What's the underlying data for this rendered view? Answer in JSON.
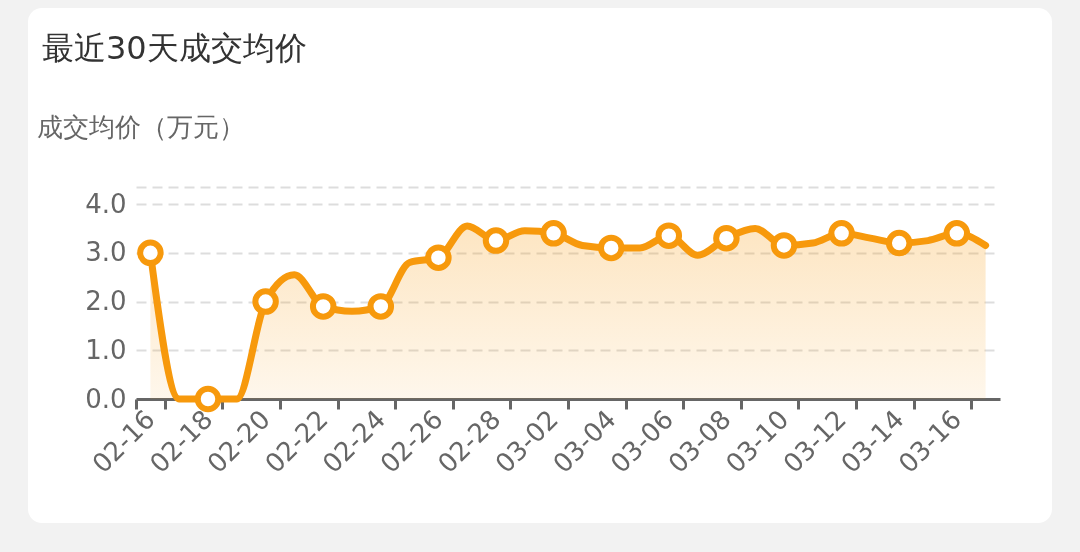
{
  "chart_data": {
    "type": "area",
    "title": "最近30天成交均价",
    "ylabel": "成交均价（万元）",
    "categories": [
      "02-16",
      null,
      "02-18",
      null,
      "02-20",
      null,
      "02-22",
      null,
      "02-24",
      null,
      "02-26",
      null,
      "02-28",
      null,
      "03-02",
      null,
      "03-04",
      null,
      "03-06",
      null,
      "03-08",
      null,
      "03-10",
      null,
      "03-12",
      null,
      "03-14",
      null,
      "03-16",
      null
    ],
    "series": [
      {
        "color": "#f7990c",
        "values": [
          3.0,
          0,
          0,
          0,
          2.0,
          2.55,
          1.9,
          1.8,
          1.9,
          2.8,
          2.9,
          3.55,
          3.25,
          3.45,
          3.4,
          3.15,
          3.1,
          3.1,
          3.35,
          2.95,
          3.3,
          3.5,
          3.15,
          3.2,
          3.4,
          3.3,
          3.2,
          3.25,
          3.4,
          3.15
        ]
      }
    ],
    "ylim": [
      0,
      4.35
    ],
    "yticks": [
      {
        "value": 0,
        "label": "0.0"
      },
      {
        "value": 1,
        "label": "1.0"
      },
      {
        "value": 2,
        "label": "2.0"
      },
      {
        "value": 3,
        "label": "3.0"
      },
      {
        "value": 4,
        "label": "4.0"
      },
      {
        "value": 4.35,
        "label": null
      }
    ],
    "grid": "y",
    "marker": "circle"
  }
}
